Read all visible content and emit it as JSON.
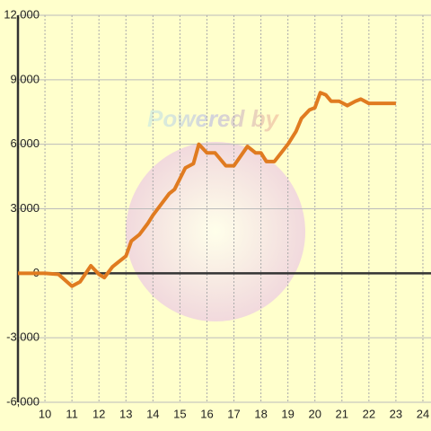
{
  "chart_data": {
    "type": "line",
    "watermark": "Powered by",
    "x": [
      9,
      10,
      10.5,
      11,
      11.3,
      11.7,
      12,
      12.2,
      12.5,
      13,
      13.2,
      13.5,
      13.8,
      14,
      14.3,
      14.6,
      14.8,
      15,
      15.2,
      15.5,
      15.7,
      16,
      16.3,
      16.7,
      17,
      17.5,
      17.8,
      18,
      18.2,
      18.5,
      19,
      19.3,
      19.5,
      19.8,
      20,
      20.2,
      20.4,
      20.6,
      20.9,
      21.2,
      21.5,
      21.7,
      22,
      22.5,
      23
    ],
    "values": [
      0,
      0,
      -50,
      -600,
      -400,
      350,
      -50,
      -200,
      300,
      800,
      1500,
      1800,
      2300,
      2700,
      3200,
      3700,
      3900,
      4400,
      4900,
      5100,
      6000,
      5600,
      5600,
      5000,
      5000,
      5900,
      5600,
      5600,
      5200,
      5200,
      6000,
      6600,
      7200,
      7600,
      7700,
      8400,
      8300,
      8000,
      8000,
      7800,
      8000,
      8100,
      7900,
      7900,
      7900
    ],
    "color": "#e07b20",
    "xlim": [
      9,
      24.3
    ],
    "xticks": [
      10,
      11,
      12,
      13,
      14,
      15,
      16,
      17,
      18,
      19,
      20,
      21,
      22,
      23,
      24
    ],
    "ylim": [
      -6000,
      12000
    ],
    "yticks": [
      {
        "value": -6000,
        "label": "-6,000"
      },
      {
        "value": -3000,
        "label": "-3,000"
      },
      0,
      {
        "value": 3000,
        "label": "3,000"
      },
      {
        "value": 6000,
        "label": "6,000"
      },
      {
        "value": 9000,
        "label": "9,000"
      },
      {
        "value": 12000,
        "label": "12,000"
      }
    ],
    "grid": true
  }
}
